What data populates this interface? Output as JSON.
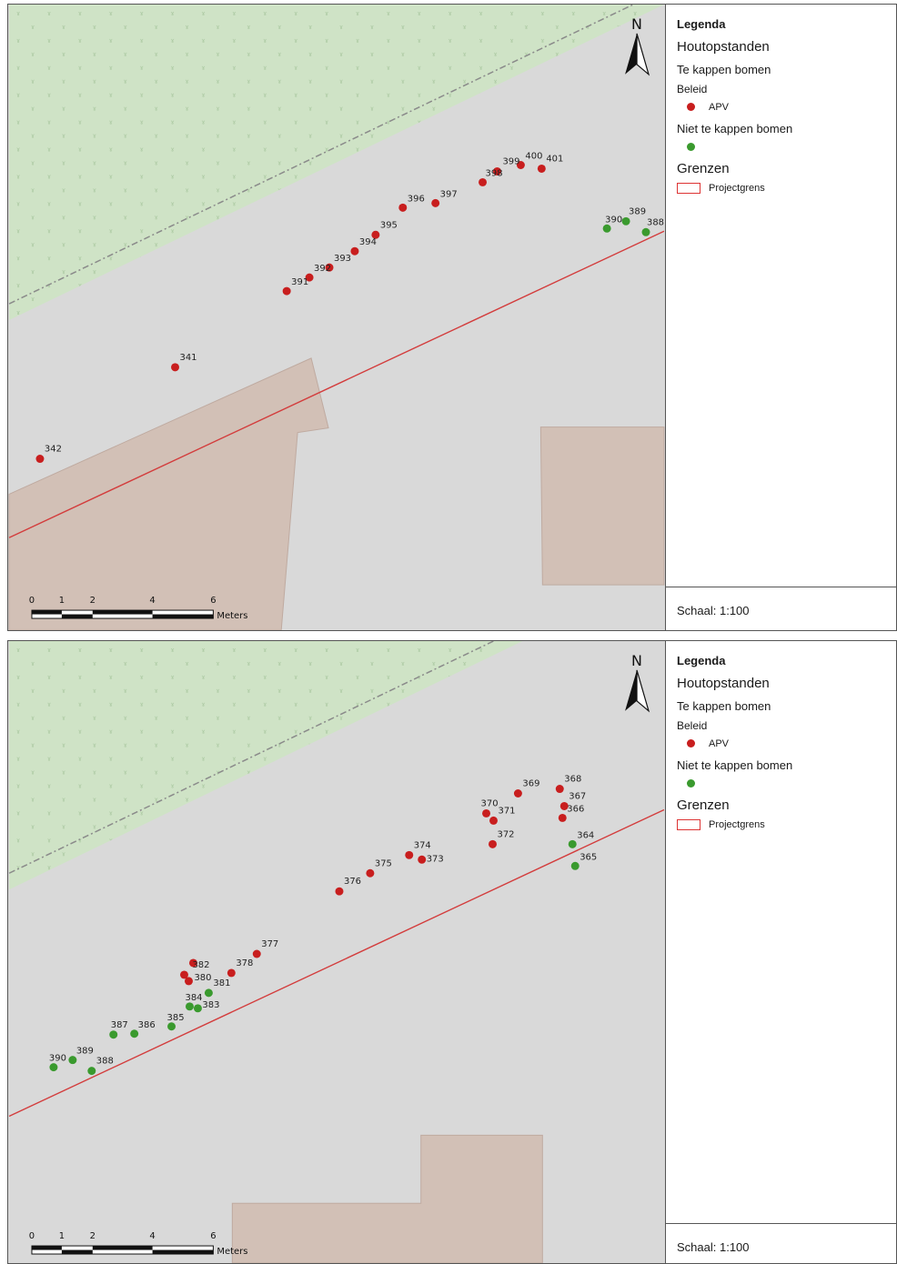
{
  "colors": {
    "cut_tree": "#c81e1e",
    "keep_tree": "#3a9a2e",
    "projectgrens": "#d33c3c",
    "green_area": "#cfe3c6",
    "building": "#d2c0b6",
    "map_background": "#d9d9d9"
  },
  "panels": [
    {
      "north_label": "N",
      "scale_labels": [
        "0",
        "1",
        "2",
        "4",
        "6"
      ],
      "scale_unit": "Meters",
      "legend": {
        "title": "Legenda",
        "group_title": "Houtopstanden",
        "cut_title": "Te kappen bomen",
        "policy_label": "Beleid",
        "apv_label": "APV",
        "keep_title": "Niet te kappen bomen",
        "boundaries_title": "Grenzen",
        "projectgrens_label": "Projectgrens",
        "scale_text": "Schaal: 1:100"
      },
      "trees_cut": [
        "391",
        "392",
        "393",
        "394",
        "395",
        "396",
        "397",
        "398",
        "399",
        "400",
        "401",
        "341",
        "342"
      ],
      "trees_keep": [
        "390",
        "389",
        "388"
      ]
    },
    {
      "north_label": "N",
      "scale_labels": [
        "0",
        "1",
        "2",
        "4",
        "6"
      ],
      "scale_unit": "Meters",
      "legend": {
        "title": "Legenda",
        "group_title": "Houtopstanden",
        "cut_title": "Te kappen bomen",
        "policy_label": "Beleid",
        "apv_label": "APV",
        "keep_title": "Niet te kappen bomen",
        "boundaries_title": "Grenzen",
        "projectgrens_label": "Projectgrens",
        "scale_text": "Schaal: 1:100"
      },
      "trees_cut": [
        "368",
        "369",
        "367",
        "366",
        "370",
        "371",
        "372",
        "374",
        "373",
        "375",
        "376",
        "377",
        "378",
        "382",
        "380",
        "381"
      ],
      "trees_keep": [
        "364",
        "365",
        "384",
        "383",
        "385",
        "386",
        "387",
        "389",
        "390",
        "388"
      ]
    }
  ]
}
